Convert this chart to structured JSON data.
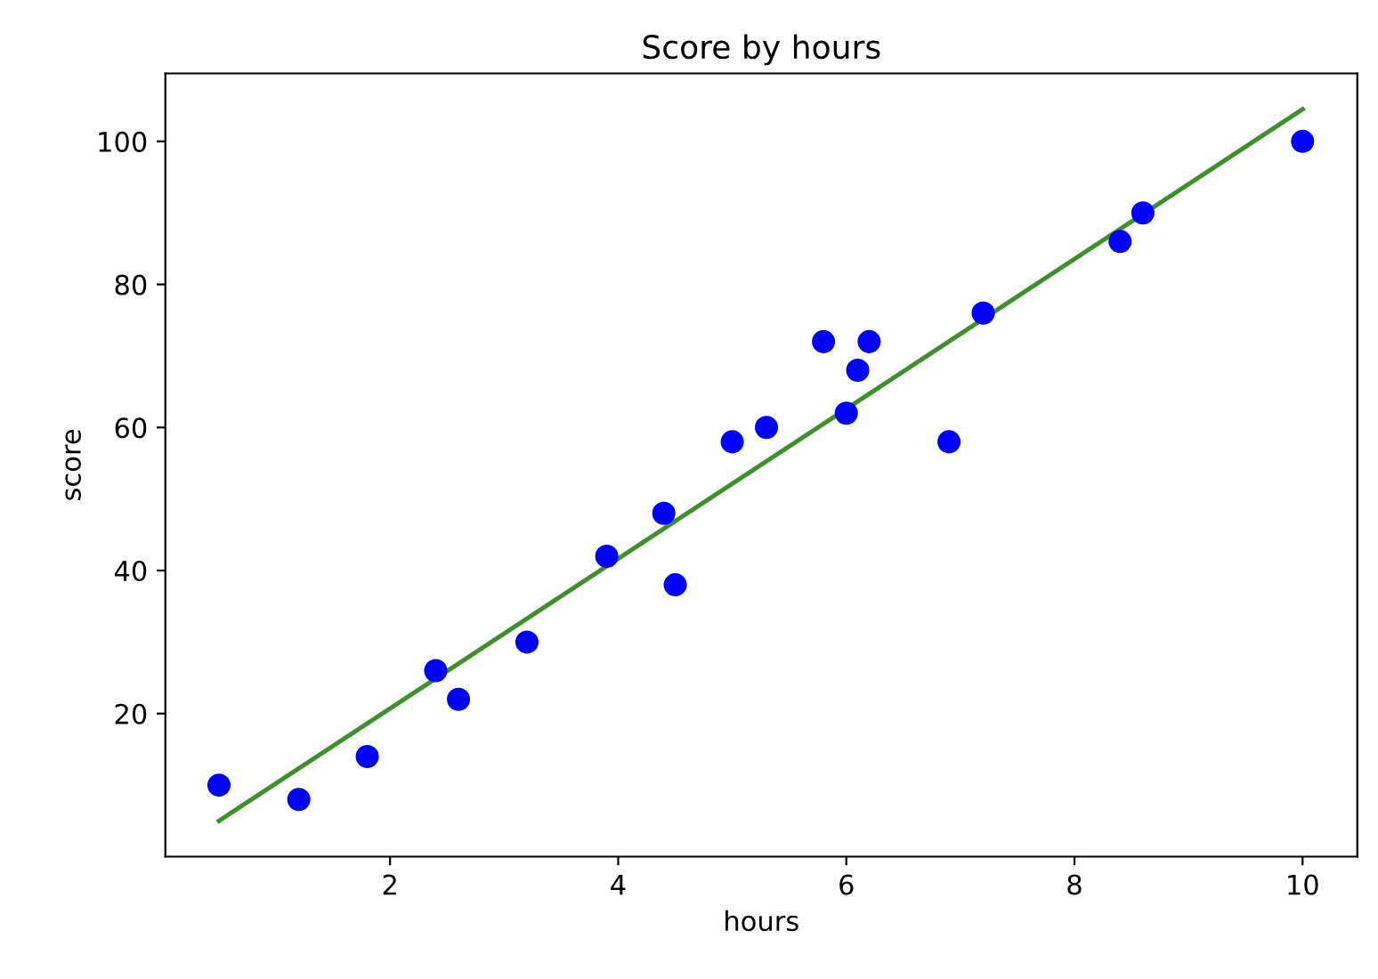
{
  "chart_data": {
    "type": "scatter",
    "title": "Score by hours",
    "xlabel": "hours",
    "ylabel": "score",
    "series": [
      {
        "color": "#0000ff",
        "marker": "circle",
        "x": [
          0.5,
          1.2,
          1.8,
          2.4,
          2.6,
          3.2,
          3.9,
          4.4,
          4.5,
          5.0,
          5.3,
          5.8,
          6.0,
          6.1,
          6.2,
          6.9,
          7.2,
          8.4,
          8.6,
          10
        ],
        "values": [
          10,
          8,
          14,
          26,
          22,
          30,
          42,
          48,
          38,
          58,
          60,
          72,
          62,
          68,
          72,
          58,
          76,
          86,
          90,
          100
        ]
      },
      {
        "type": "line",
        "color": "#3f8f2f",
        "x": [
          0.5,
          10
        ],
        "values": [
          5,
          104.5
        ]
      }
    ],
    "xlim": [
      0.03,
      10.48
    ],
    "ylim": [
      0,
      109.5
    ],
    "xticks": [
      2,
      4,
      6,
      8,
      10
    ],
    "yticks": [
      20,
      40,
      60,
      80,
      100
    ],
    "grid": false
  }
}
